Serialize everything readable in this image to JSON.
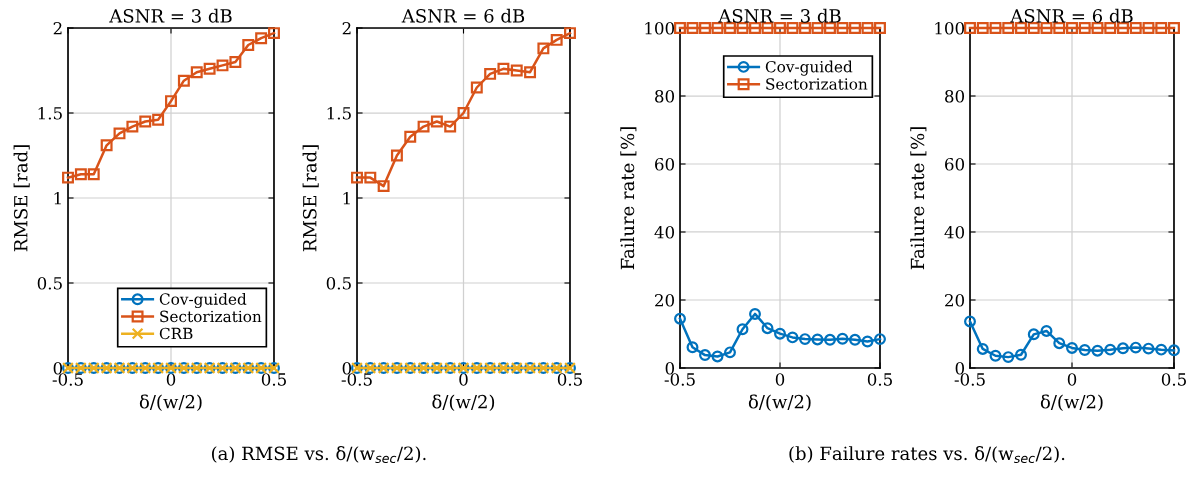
{
  "chart_data": [
    {
      "type": "line",
      "title": "ASNR = 3 dB",
      "xlabel": "δ/(w/2)",
      "ylabel": "RMSE [rad]",
      "x": [
        -0.5,
        -0.4375,
        -0.375,
        -0.3125,
        -0.25,
        -0.1875,
        -0.125,
        -0.0625,
        0,
        0.0625,
        0.125,
        0.1875,
        0.25,
        0.3125,
        0.375,
        0.4375,
        0.5
      ],
      "xlim": [
        -0.5,
        0.5
      ],
      "xticks": [
        -0.5,
        0,
        0.5
      ],
      "ylim": [
        0,
        2
      ],
      "yticks": [
        0,
        0.5,
        1,
        1.5,
        2
      ],
      "grid": true,
      "legend": "bottom right",
      "line_style": "solid",
      "annotations": [
        "(a) RMSE vs. δ/(w$_{sec}$/2)."
      ],
      "series": [
        {
          "name": "Cov-guided",
          "color": "#0072bd",
          "marker": "circle",
          "values": [
            0,
            0,
            0,
            0,
            0,
            0,
            0,
            0,
            0,
            0,
            0,
            0,
            0,
            0,
            0,
            0,
            0
          ]
        },
        {
          "name": "Sectorization",
          "color": "#d95319",
          "marker": "square",
          "values": [
            1.12,
            1.14,
            1.14,
            1.31,
            1.38,
            1.42,
            1.45,
            1.46,
            1.57,
            1.69,
            1.74,
            1.76,
            1.78,
            1.8,
            1.9,
            1.94,
            1.97
          ]
        },
        {
          "name": "CRB",
          "color": "#edb120",
          "marker": "cross",
          "values": [
            0,
            0,
            0,
            0,
            0,
            0,
            0,
            0,
            0,
            0,
            0,
            0,
            0,
            0,
            0,
            0,
            0
          ]
        }
      ]
    },
    {
      "type": "line",
      "title": "ASNR = 6 dB",
      "xlabel": "δ/(w/2)",
      "ylabel": "RMSE [rad]",
      "x": [
        -0.5,
        -0.4375,
        -0.375,
        -0.3125,
        -0.25,
        -0.1875,
        -0.125,
        -0.0625,
        0,
        0.0625,
        0.125,
        0.1875,
        0.25,
        0.3125,
        0.375,
        0.4375,
        0.5
      ],
      "xlim": [
        -0.5,
        0.5
      ],
      "xticks": [
        -0.5,
        0,
        0.5
      ],
      "ylim": [
        0,
        2
      ],
      "yticks": [
        0,
        0.5,
        1,
        1.5,
        2
      ],
      "grid": true,
      "line_style": "solid",
      "series": [
        {
          "color": "#0072bd",
          "marker": "circle",
          "values": [
            0,
            0,
            0,
            0,
            0,
            0,
            0,
            0,
            0,
            0,
            0,
            0,
            0,
            0,
            0,
            0,
            0
          ]
        },
        {
          "color": "#d95319",
          "marker": "square",
          "values": [
            1.12,
            1.12,
            1.07,
            1.25,
            1.36,
            1.42,
            1.45,
            1.42,
            1.5,
            1.65,
            1.73,
            1.76,
            1.75,
            1.74,
            1.88,
            1.93,
            1.97
          ]
        },
        {
          "color": "#edb120",
          "marker": "cross",
          "values": [
            0,
            0,
            0,
            0,
            0,
            0,
            0,
            0,
            0,
            0,
            0,
            0,
            0,
            0,
            0,
            0,
            0
          ]
        }
      ]
    },
    {
      "type": "line",
      "title": "ASNR = 3 dB",
      "xlabel": "δ/(w/2)",
      "ylabel": "Failure rate [%]",
      "x": [
        -0.5,
        -0.4375,
        -0.375,
        -0.3125,
        -0.25,
        -0.1875,
        -0.125,
        -0.0625,
        0,
        0.0625,
        0.125,
        0.1875,
        0.25,
        0.3125,
        0.375,
        0.4375,
        0.5
      ],
      "xlim": [
        -0.5,
        0.5
      ],
      "xticks": [
        -0.5,
        0,
        0.5
      ],
      "ylim": [
        0,
        100
      ],
      "yticks": [
        0,
        20,
        40,
        60,
        80,
        100
      ],
      "grid": true,
      "legend": "top right",
      "line_style": "solid",
      "annotations": [
        "(b) Failure rates vs. δ/(w$_{sec}$/2)."
      ],
      "series": [
        {
          "name": "Cov-guided",
          "color": "#0072bd",
          "marker": "circle",
          "values": [
            14.5,
            6.1,
            3.8,
            3.4,
            4.6,
            11.4,
            15.9,
            11.7,
            10.1,
            9.0,
            8.5,
            8.4,
            8.3,
            8.6,
            8.3,
            7.8,
            8.5
          ]
        },
        {
          "name": "Sectorization",
          "color": "#d95319",
          "marker": "square",
          "values": [
            100,
            100,
            100,
            100,
            100,
            100,
            100,
            100,
            100,
            100,
            100,
            100,
            100,
            100,
            100,
            100,
            100
          ]
        }
      ]
    },
    {
      "type": "line",
      "title": "ASNR = 6 dB",
      "xlabel": "δ/(w/2)",
      "ylabel": "Failure rate [%]",
      "x": [
        -0.5,
        -0.4375,
        -0.375,
        -0.3125,
        -0.25,
        -0.1875,
        -0.125,
        -0.0625,
        0,
        0.0625,
        0.125,
        0.1875,
        0.25,
        0.3125,
        0.375,
        0.4375,
        0.5
      ],
      "xlim": [
        -0.5,
        0.5
      ],
      "xticks": [
        -0.5,
        0,
        0.5
      ],
      "ylim": [
        0,
        100
      ],
      "yticks": [
        0,
        20,
        40,
        60,
        80,
        100
      ],
      "grid": true,
      "line_style": "solid",
      "series": [
        {
          "color": "#0072bd",
          "marker": "circle",
          "values": [
            13.7,
            5.6,
            3.6,
            3.2,
            3.9,
            9.9,
            10.9,
            7.3,
            5.9,
            5.3,
            5.1,
            5.4,
            5.8,
            6.0,
            5.7,
            5.4,
            5.2
          ]
        },
        {
          "color": "#d95319",
          "marker": "square",
          "values": [
            100,
            100,
            100,
            100,
            100,
            100,
            100,
            100,
            100,
            100,
            100,
            100,
            100,
            100,
            100,
            100,
            100
          ]
        }
      ]
    }
  ]
}
